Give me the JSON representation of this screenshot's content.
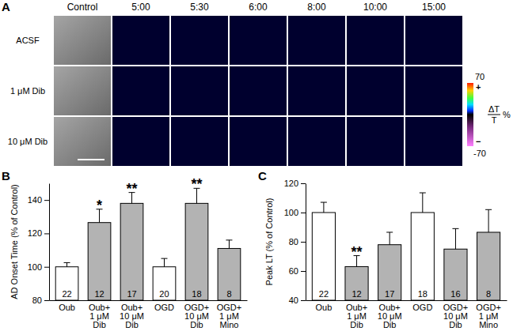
{
  "panel_a": {
    "panel_label": "A",
    "columns": [
      "Control",
      "5:00",
      "5:30",
      "6:00",
      "8:00",
      "10:00",
      "15:00"
    ],
    "rows": [
      "ACSF",
      "1 μM Dib",
      "10 μM Dib"
    ],
    "colorbar": {
      "range": [
        -70,
        70
      ],
      "ticks": [
        70,
        -70
      ],
      "plus": "+",
      "minus": "−",
      "label": {
        "numerator": "ΔT",
        "denominator": "T",
        "unit": "%"
      }
    }
  },
  "chart_data": [
    {
      "type": "bar",
      "panel_label": "B",
      "y_label": "AD Onset Time (% of Control)",
      "categories": [
        "Oub",
        "Oub+\n1 μM\nDib",
        "Oub+\n10 μM\nDib",
        "OGD",
        "OGD+\n10 μM\nDib",
        "OGD+\n1 μM\nMino"
      ],
      "values": [
        100,
        126.5,
        138,
        100,
        138,
        111
      ],
      "errors": [
        2.5,
        8,
        6.5,
        5,
        9,
        5
      ],
      "n": [
        22,
        12,
        17,
        20,
        18,
        8
      ],
      "significance": [
        null,
        "*",
        "**",
        null,
        "**",
        null
      ],
      "colors": [
        "#ffffff",
        "#b3b3b3",
        "#b3b3b3",
        "#ffffff",
        "#b3b3b3",
        "#b3b3b3"
      ],
      "ylim": [
        80,
        150
      ],
      "yticks": [
        80,
        100,
        120,
        140
      ]
    },
    {
      "type": "bar",
      "panel_label": "C",
      "y_label": "Peak LT (% of Control)",
      "categories": [
        "Oub",
        "Oub+\n1 μM\nDib",
        "Oub+\n10 μM\nDib",
        "OGD",
        "OGD+\n10 μM\nDib",
        "OGD+\n1 μM\nMino"
      ],
      "values": [
        100,
        63,
        78,
        100,
        75,
        86.5
      ],
      "errors": [
        7,
        7.5,
        8.5,
        13.5,
        14,
        15.5
      ],
      "n": [
        22,
        12,
        17,
        18,
        16,
        8
      ],
      "significance": [
        null,
        "**",
        null,
        null,
        null,
        null
      ],
      "colors": [
        "#ffffff",
        "#b3b3b3",
        "#b3b3b3",
        "#ffffff",
        "#b3b3b3",
        "#b3b3b3"
      ],
      "ylim": [
        40,
        120
      ],
      "yticks": [
        40,
        60,
        80,
        100,
        120
      ]
    }
  ]
}
